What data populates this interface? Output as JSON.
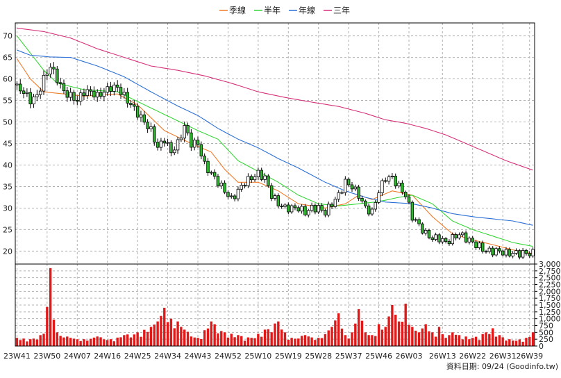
{
  "legend": [
    {
      "label": "季線",
      "color": "#f07b2a"
    },
    {
      "label": "半年",
      "color": "#37d637"
    },
    {
      "label": "年線",
      "color": "#2a6fd6"
    },
    {
      "label": "三年",
      "color": "#d6307a"
    }
  ],
  "footer": {
    "credit": "資料日期: 09/24 (Goodinfo.tw)"
  },
  "colors": {
    "up": "#ffffff",
    "down": "#2fb82f",
    "volume": "#e01818",
    "grid": "#b0b0b0"
  },
  "chart_data": {
    "type": "candlestick+line+bar",
    "price_axis": {
      "ylim": [
        17,
        73
      ],
      "ticks": [
        20,
        25,
        30,
        35,
        40,
        45,
        50,
        55,
        60,
        65,
        70
      ]
    },
    "volume_axis": {
      "ylim": [
        0,
        3000
      ],
      "ticks": [
        0,
        250,
        500,
        750,
        1000,
        1250,
        1500,
        1750,
        2000,
        2250,
        2500,
        2750,
        3000
      ],
      "tick_labels": [
        "0",
        "250",
        "500",
        "750",
        "1,000",
        "1,250",
        "1,500",
        "1,750",
        "2,000",
        "2,250",
        "2,500",
        "2,750",
        "3,000"
      ]
    },
    "x_tick_labels": [
      "23W41",
      "23W50",
      "24W07",
      "24W16",
      "24W25",
      "24W34",
      "24W43",
      "24W52",
      "25W10",
      "25W19",
      "25W28",
      "25W37",
      "25W46",
      "26W03",
      "26W13",
      "26W22",
      "26W31",
      "26W39"
    ],
    "x_tick_index": [
      0,
      9,
      18,
      27,
      36,
      45,
      54,
      63,
      72,
      81,
      90,
      99,
      108,
      117,
      127,
      136,
      145,
      153
    ],
    "week_count": 155,
    "close_anchors": [
      [
        0,
        58
      ],
      [
        2,
        57
      ],
      [
        4,
        55
      ],
      [
        6,
        56
      ],
      [
        8,
        60
      ],
      [
        10,
        63
      ],
      [
        12,
        60
      ],
      [
        14,
        57
      ],
      [
        16,
        56
      ],
      [
        18,
        55
      ],
      [
        20,
        57
      ],
      [
        22,
        57
      ],
      [
        24,
        56
      ],
      [
        26,
        57
      ],
      [
        28,
        58
      ],
      [
        30,
        58
      ],
      [
        32,
        56
      ],
      [
        34,
        54
      ],
      [
        36,
        52
      ],
      [
        38,
        50
      ],
      [
        40,
        48
      ],
      [
        42,
        44
      ],
      [
        44,
        46
      ],
      [
        46,
        43
      ],
      [
        48,
        45
      ],
      [
        50,
        49
      ],
      [
        52,
        45
      ],
      [
        54,
        45
      ],
      [
        56,
        40
      ],
      [
        58,
        38
      ],
      [
        60,
        36
      ],
      [
        62,
        34
      ],
      [
        64,
        32
      ],
      [
        66,
        34
      ],
      [
        68,
        36
      ],
      [
        70,
        37
      ],
      [
        72,
        38
      ],
      [
        74,
        37
      ],
      [
        76,
        33
      ],
      [
        78,
        31
      ],
      [
        80,
        30
      ],
      [
        82,
        30
      ],
      [
        84,
        30
      ],
      [
        86,
        29
      ],
      [
        88,
        30
      ],
      [
        90,
        30
      ],
      [
        92,
        29
      ],
      [
        94,
        31
      ],
      [
        96,
        33
      ],
      [
        98,
        36
      ],
      [
        100,
        35
      ],
      [
        102,
        33
      ],
      [
        104,
        30
      ],
      [
        106,
        29
      ],
      [
        108,
        34
      ],
      [
        110,
        37
      ],
      [
        112,
        37
      ],
      [
        114,
        35
      ],
      [
        116,
        33
      ],
      [
        118,
        28
      ],
      [
        120,
        26
      ],
      [
        122,
        24
      ],
      [
        124,
        23
      ],
      [
        126,
        23
      ],
      [
        128,
        22
      ],
      [
        130,
        23
      ],
      [
        132,
        24
      ],
      [
        134,
        23
      ],
      [
        136,
        22
      ],
      [
        138,
        21
      ],
      [
        140,
        20
      ],
      [
        142,
        20
      ],
      [
        144,
        20
      ],
      [
        146,
        19.5
      ],
      [
        148,
        19.5
      ],
      [
        150,
        19.5
      ],
      [
        154,
        19.5
      ]
    ],
    "volume_anchors": [
      [
        0,
        300
      ],
      [
        4,
        250
      ],
      [
        8,
        450
      ],
      [
        10,
        2850
      ],
      [
        12,
        500
      ],
      [
        16,
        300
      ],
      [
        20,
        250
      ],
      [
        24,
        350
      ],
      [
        28,
        250
      ],
      [
        32,
        400
      ],
      [
        36,
        500
      ],
      [
        40,
        700
      ],
      [
        42,
        900
      ],
      [
        44,
        1400
      ],
      [
        46,
        1000
      ],
      [
        48,
        900
      ],
      [
        50,
        600
      ],
      [
        54,
        300
      ],
      [
        58,
        900
      ],
      [
        62,
        500
      ],
      [
        66,
        400
      ],
      [
        70,
        300
      ],
      [
        74,
        600
      ],
      [
        78,
        900
      ],
      [
        80,
        500
      ],
      [
        82,
        300
      ],
      [
        86,
        400
      ],
      [
        90,
        300
      ],
      [
        94,
        700
      ],
      [
        96,
        1200
      ],
      [
        98,
        400
      ],
      [
        100,
        500
      ],
      [
        102,
        1350
      ],
      [
        104,
        500
      ],
      [
        106,
        400
      ],
      [
        108,
        800
      ],
      [
        110,
        700
      ],
      [
        112,
        1500
      ],
      [
        114,
        900
      ],
      [
        116,
        1550
      ],
      [
        118,
        700
      ],
      [
        120,
        500
      ],
      [
        122,
        800
      ],
      [
        124,
        500
      ],
      [
        126,
        700
      ],
      [
        128,
        300
      ],
      [
        130,
        500
      ],
      [
        132,
        400
      ],
      [
        136,
        300
      ],
      [
        140,
        500
      ],
      [
        142,
        650
      ],
      [
        144,
        400
      ],
      [
        148,
        200
      ],
      [
        152,
        300
      ],
      [
        154,
        500
      ]
    ],
    "series": [
      {
        "name": "季線",
        "values": [
          [
            0,
            64.7
          ],
          [
            4,
            60
          ],
          [
            8,
            57
          ],
          [
            14,
            56.5
          ],
          [
            20,
            56
          ],
          [
            30,
            56.5
          ],
          [
            36,
            54
          ],
          [
            44,
            48
          ],
          [
            52,
            45
          ],
          [
            58,
            43
          ],
          [
            62,
            39
          ],
          [
            66,
            36
          ],
          [
            72,
            36
          ],
          [
            78,
            34
          ],
          [
            84,
            31
          ],
          [
            92,
            30
          ],
          [
            98,
            31
          ],
          [
            102,
            33
          ],
          [
            106,
            32
          ],
          [
            112,
            34
          ],
          [
            118,
            33
          ],
          [
            124,
            28
          ],
          [
            130,
            24
          ],
          [
            136,
            22.6
          ],
          [
            142,
            21.5
          ],
          [
            148,
            20.3
          ],
          [
            154,
            19.4
          ]
        ]
      },
      {
        "name": "半年",
        "values": [
          [
            0,
            70
          ],
          [
            4,
            66
          ],
          [
            8,
            62
          ],
          [
            12,
            59
          ],
          [
            20,
            57.5
          ],
          [
            30,
            57
          ],
          [
            38,
            54
          ],
          [
            46,
            51
          ],
          [
            54,
            48
          ],
          [
            60,
            46
          ],
          [
            66,
            41
          ],
          [
            72,
            38.5
          ],
          [
            78,
            36
          ],
          [
            84,
            33
          ],
          [
            90,
            31
          ],
          [
            96,
            30.5
          ],
          [
            102,
            31
          ],
          [
            108,
            31.5
          ],
          [
            114,
            32.5
          ],
          [
            118,
            33
          ],
          [
            124,
            31
          ],
          [
            130,
            27
          ],
          [
            136,
            25
          ],
          [
            142,
            23.5
          ],
          [
            148,
            22
          ],
          [
            154,
            21.1
          ]
        ]
      },
      {
        "name": "年線",
        "values": [
          [
            0,
            66.7
          ],
          [
            4,
            65.5
          ],
          [
            10,
            65.1
          ],
          [
            16,
            65
          ],
          [
            24,
            63
          ],
          [
            32,
            60.5
          ],
          [
            40,
            57
          ],
          [
            48,
            53.7
          ],
          [
            54,
            51.5
          ],
          [
            60,
            48.5
          ],
          [
            66,
            46
          ],
          [
            72,
            44
          ],
          [
            78,
            41.5
          ],
          [
            84,
            39.3
          ],
          [
            92,
            36
          ],
          [
            98,
            34
          ],
          [
            104,
            32.5
          ],
          [
            110,
            31.4
          ],
          [
            118,
            31
          ],
          [
            124,
            30
          ],
          [
            130,
            28.7
          ],
          [
            136,
            28
          ],
          [
            142,
            27.5
          ],
          [
            148,
            27
          ],
          [
            154,
            26
          ]
        ]
      },
      {
        "name": "三年",
        "values": [
          [
            0,
            71.8
          ],
          [
            8,
            71
          ],
          [
            16,
            69.5
          ],
          [
            24,
            67
          ],
          [
            32,
            65
          ],
          [
            40,
            63
          ],
          [
            48,
            62
          ],
          [
            56,
            60.7
          ],
          [
            64,
            59
          ],
          [
            72,
            57
          ],
          [
            80,
            55.7
          ],
          [
            88,
            54.6
          ],
          [
            96,
            53.6
          ],
          [
            104,
            52
          ],
          [
            110,
            50.5
          ],
          [
            116,
            49.7
          ],
          [
            122,
            48.5
          ],
          [
            128,
            47
          ],
          [
            134,
            45
          ],
          [
            140,
            43
          ],
          [
            146,
            41
          ],
          [
            154,
            38.8
          ]
        ]
      }
    ]
  }
}
